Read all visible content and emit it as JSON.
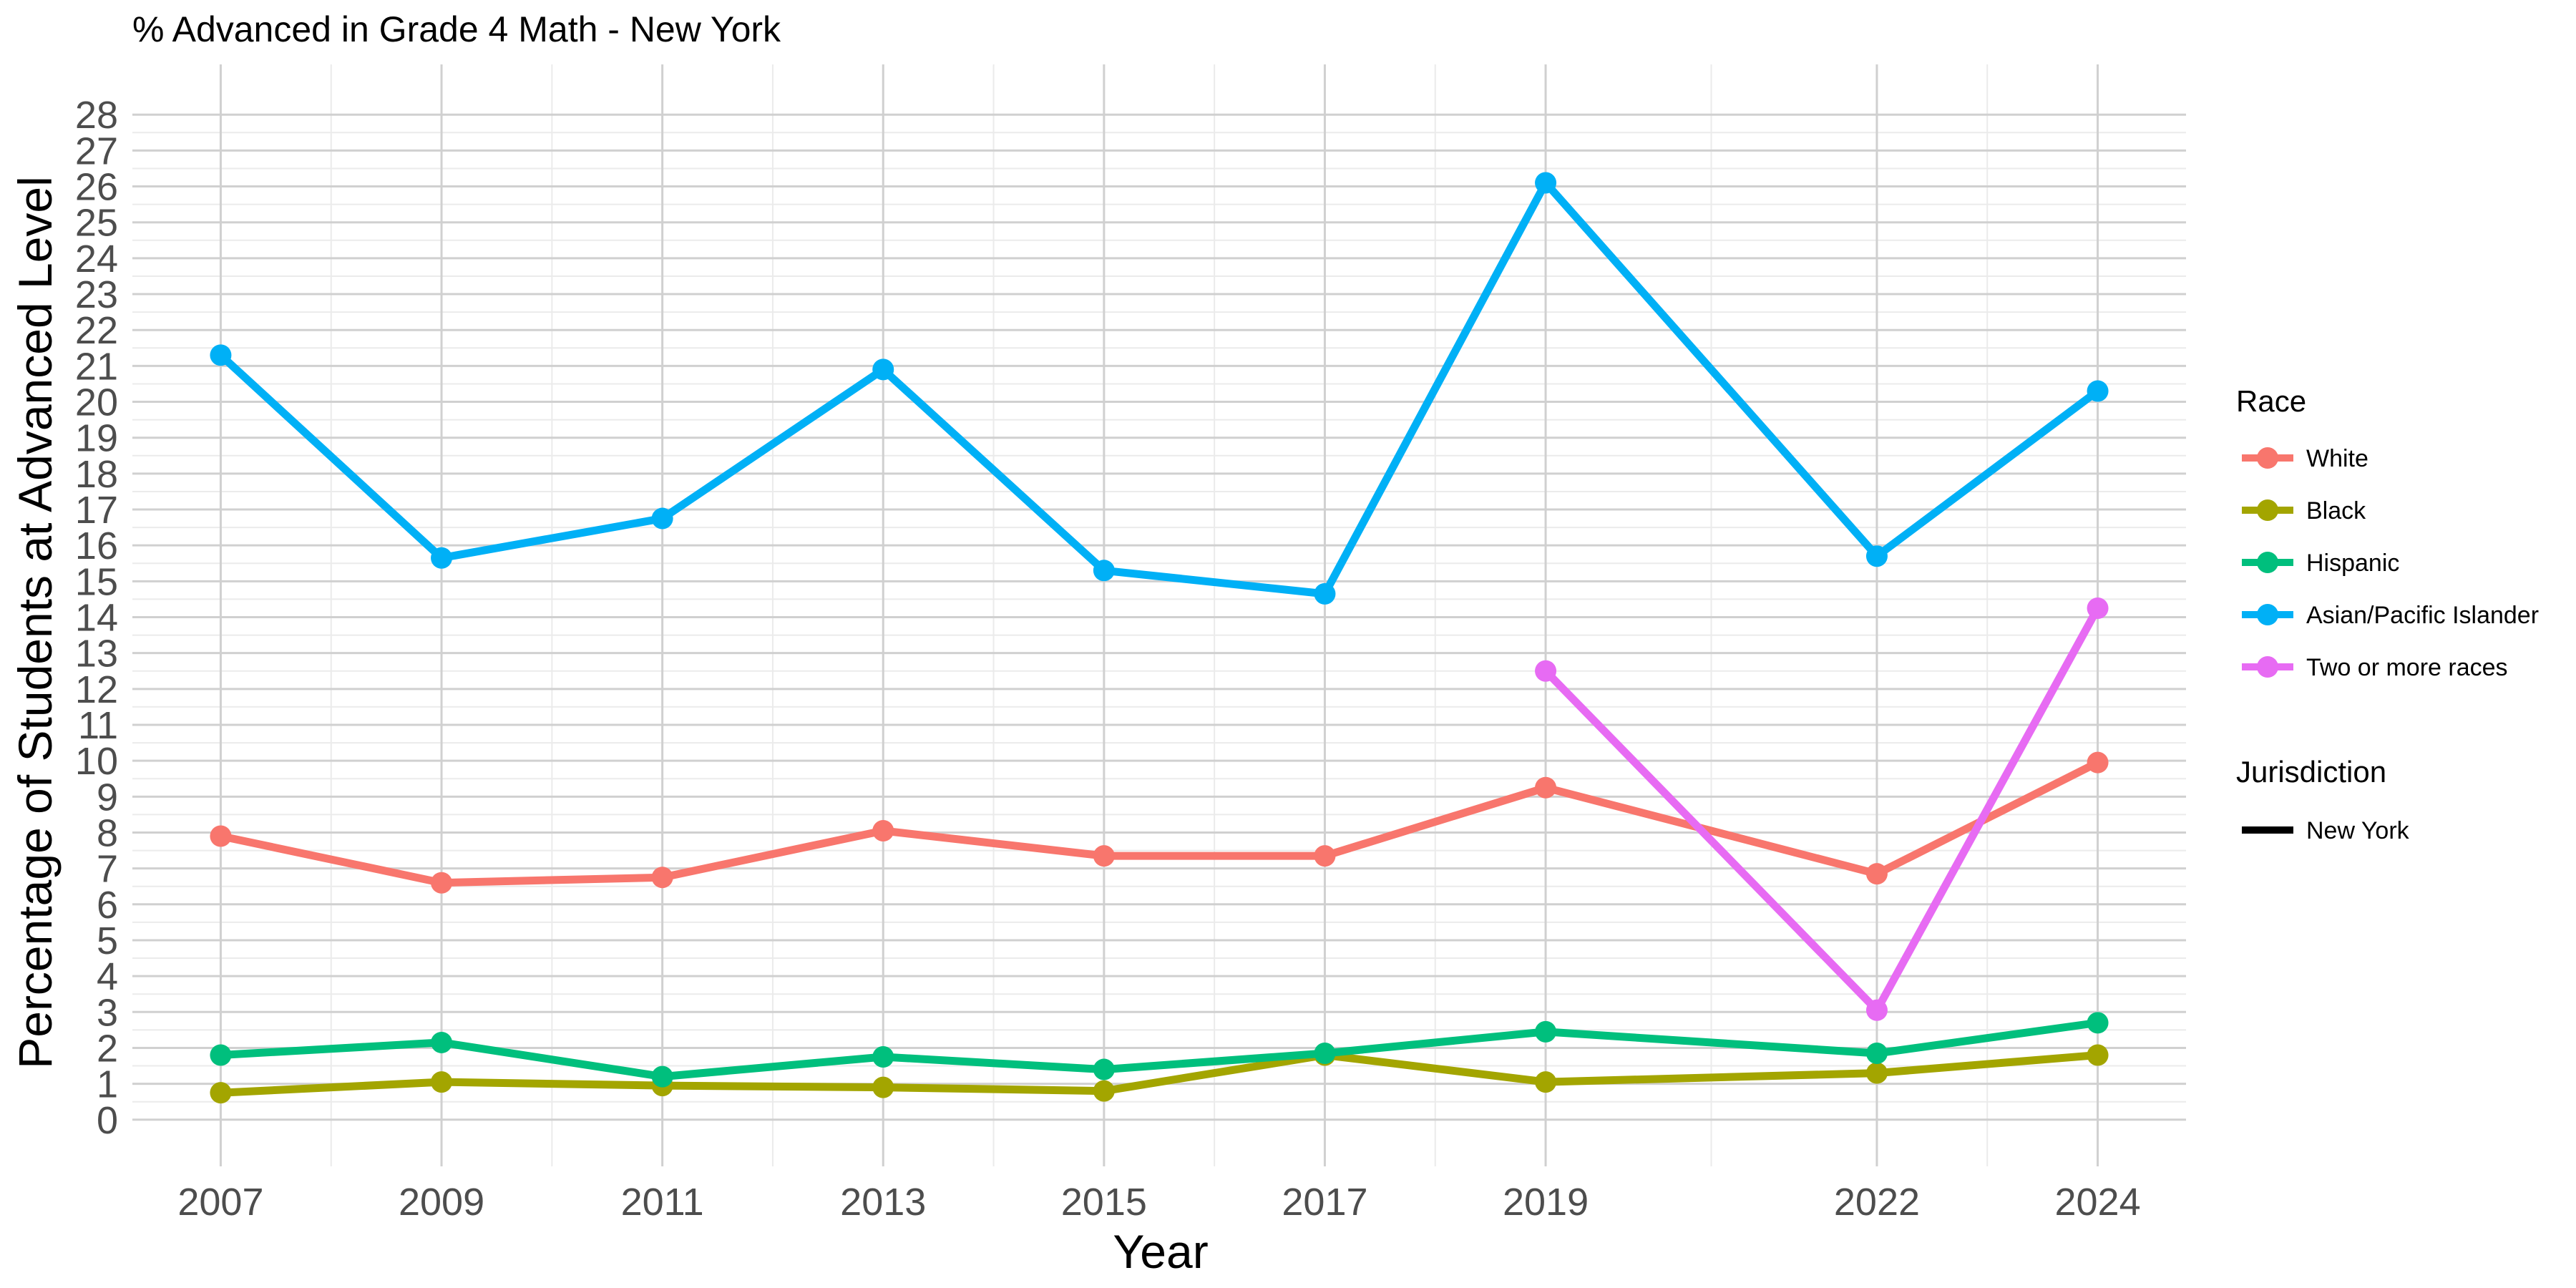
{
  "chart_data": {
    "type": "line",
    "title": "% Advanced in Grade 4 Math - New York",
    "xlabel": "Year",
    "ylabel": "Percentage of Students at Advanced Level",
    "x_ticks": [
      "2007",
      "2009",
      "2011",
      "2013",
      "2015",
      "2017",
      "2019",
      "2022",
      "2024"
    ],
    "x_range": [
      2006.2,
      2024.8
    ],
    "y_ticks": [
      "0",
      "1",
      "2",
      "3",
      "4",
      "5",
      "6",
      "7",
      "8",
      "9",
      "10",
      "11",
      "12",
      "13",
      "14",
      "15",
      "16",
      "17",
      "18",
      "19",
      "20",
      "21",
      "22",
      "23",
      "24",
      "25",
      "26",
      "27",
      "28"
    ],
    "ylim": [
      -1.3,
      29.4
    ],
    "grid": true,
    "legend_position": "right",
    "series": [
      {
        "name": "White",
        "color": "#F8766D",
        "points": [
          [
            2007,
            7.9
          ],
          [
            2009,
            6.6
          ],
          [
            2011,
            6.75
          ],
          [
            2013,
            8.05
          ],
          [
            2015,
            7.35
          ],
          [
            2017,
            7.35
          ],
          [
            2019,
            9.25
          ],
          [
            2022,
            6.85
          ],
          [
            2024,
            9.95
          ]
        ]
      },
      {
        "name": "Black",
        "color": "#A3A500",
        "points": [
          [
            2007,
            0.75
          ],
          [
            2009,
            1.05
          ],
          [
            2011,
            0.95
          ],
          [
            2013,
            0.9
          ],
          [
            2015,
            0.8
          ],
          [
            2017,
            1.8
          ],
          [
            2019,
            1.05
          ],
          [
            2022,
            1.3
          ],
          [
            2024,
            1.8
          ]
        ]
      },
      {
        "name": "Hispanic",
        "color": "#00BF7D",
        "points": [
          [
            2007,
            1.8
          ],
          [
            2009,
            2.15
          ],
          [
            2011,
            1.2
          ],
          [
            2013,
            1.75
          ],
          [
            2015,
            1.4
          ],
          [
            2017,
            1.85
          ],
          [
            2019,
            2.45
          ],
          [
            2022,
            1.85
          ],
          [
            2024,
            2.7
          ]
        ]
      },
      {
        "name": "Asian/Pacific Islander",
        "color": "#00B0F6",
        "points": [
          [
            2007,
            21.3
          ],
          [
            2009,
            15.65
          ],
          [
            2011,
            16.75
          ],
          [
            2013,
            20.9
          ],
          [
            2015,
            15.3
          ],
          [
            2017,
            14.65
          ],
          [
            2019,
            26.1
          ],
          [
            2022,
            15.7
          ],
          [
            2024,
            20.3
          ]
        ]
      },
      {
        "name": "Two or more races",
        "color": "#E76BF3",
        "points": [
          [
            2019,
            12.5
          ],
          [
            2022,
            3.05
          ],
          [
            2024,
            14.25
          ]
        ]
      }
    ],
    "legend": {
      "race_title": "Race",
      "jurisdiction_title": "Jurisdiction",
      "jurisdiction_items": [
        {
          "name": "New York",
          "color": "#000000"
        }
      ]
    }
  }
}
